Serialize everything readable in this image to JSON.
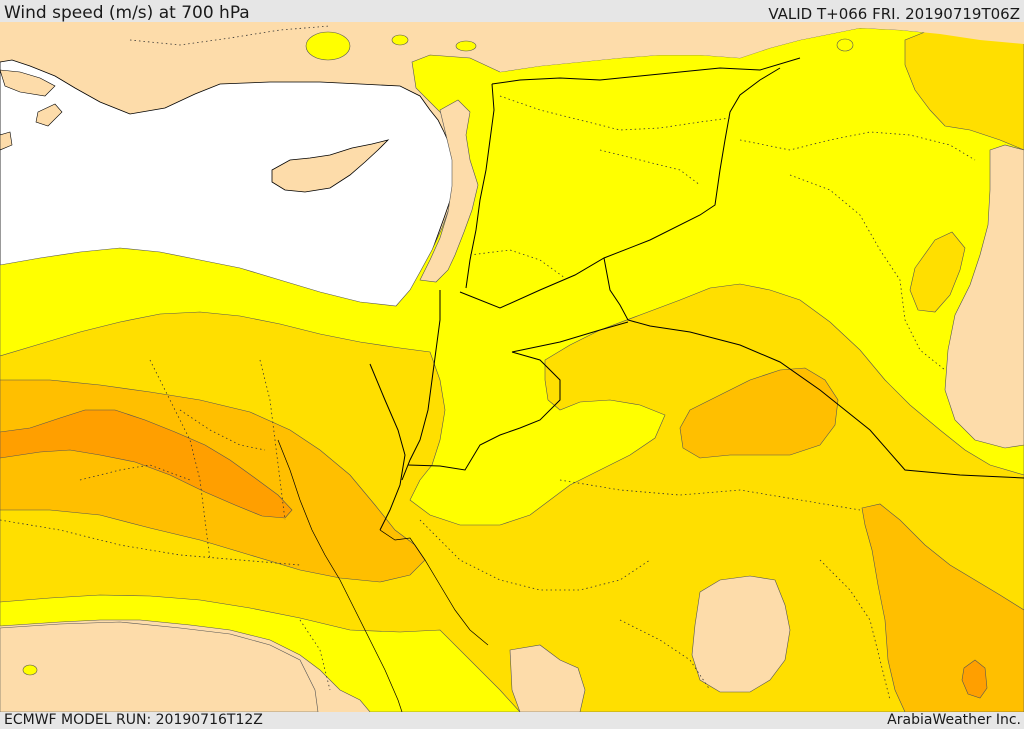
{
  "header": {
    "title": "Wind speed (m/s) at 700 hPa",
    "valid": "VALID T+066 FRI. 20190719T06Z"
  },
  "footer": {
    "model_run": "ECMWF MODEL RUN: 20190716T12Z",
    "brand": "ArabiaWeather Inc."
  },
  "colors": {
    "sea": "#ffffff",
    "land": "#fddcaa",
    "band_1": "#ffff00",
    "band_2": "#ffdf00",
    "band_3": "#ffbf00",
    "band_4": "#ff9f00",
    "borders": "#000000"
  }
}
